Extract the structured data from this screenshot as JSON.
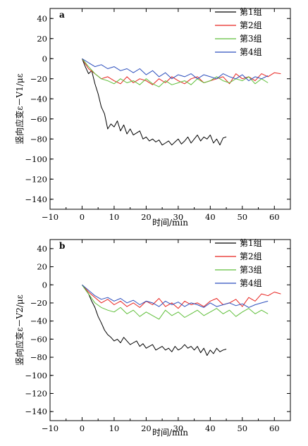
{
  "chart_data": [
    {
      "type": "line",
      "panel_label": "a",
      "xlabel": "时间/min",
      "ylabel": "竖向应变ε－V1/με",
      "xlim": [
        -10,
        65
      ],
      "ylim": [
        -150,
        50
      ],
      "xticks": [
        -10,
        0,
        10,
        20,
        30,
        40,
        50,
        60
      ],
      "yticks": [
        40,
        20,
        0,
        -20,
        -40,
        -60,
        -80,
        -100,
        -120,
        -140
      ],
      "xtick_labels": [
        "−10",
        "0",
        "10",
        "20",
        "30",
        "40",
        "50",
        "60"
      ],
      "ytick_labels": [
        "40",
        "20",
        "0",
        "−20",
        "−40",
        "−60",
        "−80",
        "−100",
        "−120",
        "−140"
      ],
      "legend_position": "top-right",
      "series": [
        {
          "name": "第1组",
          "color": "#000000",
          "x": [
            0,
            1,
            2,
            3,
            4,
            5,
            6,
            7,
            8,
            9,
            10,
            11,
            12,
            13,
            14,
            15,
            16,
            17,
            18,
            19,
            20,
            21,
            22,
            23,
            24,
            25,
            26,
            27,
            28,
            29,
            30,
            31,
            32,
            33,
            34,
            35,
            36,
            37,
            38,
            39,
            40,
            41,
            42,
            43,
            44,
            45
          ],
          "y": [
            0,
            -8,
            -15,
            -12,
            -25,
            -35,
            -48,
            -55,
            -70,
            -65,
            -68,
            -62,
            -72,
            -66,
            -75,
            -70,
            -76,
            -74,
            -72,
            -80,
            -78,
            -82,
            -80,
            -83,
            -81,
            -86,
            -84,
            -82,
            -86,
            -83,
            -80,
            -85,
            -82,
            -78,
            -84,
            -80,
            -76,
            -82,
            -78,
            -80,
            -76,
            -84,
            -80,
            -86,
            -79,
            -78
          ]
        },
        {
          "name": "第2组",
          "color": "#e8231f",
          "x": [
            0,
            2,
            4,
            6,
            8,
            10,
            12,
            14,
            16,
            18,
            20,
            22,
            24,
            26,
            28,
            30,
            32,
            34,
            36,
            38,
            40,
            42,
            44,
            46,
            48,
            50,
            52,
            54,
            56,
            58,
            60,
            62
          ],
          "y": [
            0,
            -10,
            -15,
            -20,
            -18,
            -22,
            -25,
            -18,
            -24,
            -20,
            -22,
            -26,
            -20,
            -24,
            -18,
            -22,
            -25,
            -20,
            -18,
            -24,
            -22,
            -20,
            -18,
            -25,
            -15,
            -20,
            -18,
            -22,
            -15,
            -18,
            -14,
            -15
          ]
        },
        {
          "name": "第3组",
          "color": "#5fbf3a",
          "x": [
            0,
            2,
            4,
            6,
            8,
            10,
            12,
            14,
            16,
            18,
            20,
            22,
            24,
            26,
            28,
            30,
            32,
            34,
            36,
            38,
            40,
            42,
            44,
            46,
            48,
            50,
            52,
            54,
            56,
            58
          ],
          "y": [
            0,
            -8,
            -15,
            -20,
            -22,
            -25,
            -20,
            -24,
            -22,
            -26,
            -20,
            -25,
            -28,
            -22,
            -26,
            -24,
            -22,
            -26,
            -20,
            -24,
            -22,
            -18,
            -22,
            -24,
            -20,
            -22,
            -18,
            -25,
            -20,
            -24
          ]
        },
        {
          "name": "第4组",
          "color": "#2d4fbd",
          "x": [
            0,
            2,
            4,
            6,
            8,
            10,
            12,
            14,
            16,
            18,
            20,
            22,
            24,
            26,
            28,
            30,
            32,
            34,
            36,
            38,
            40,
            42,
            44,
            46,
            48,
            50,
            52,
            54,
            56,
            58
          ],
          "y": [
            0,
            -4,
            -8,
            -6,
            -10,
            -8,
            -12,
            -10,
            -14,
            -10,
            -16,
            -12,
            -18,
            -14,
            -20,
            -16,
            -18,
            -15,
            -20,
            -16,
            -18,
            -20,
            -15,
            -18,
            -20,
            -16,
            -22,
            -18,
            -20,
            -17
          ]
        }
      ]
    },
    {
      "type": "line",
      "panel_label": "b",
      "xlabel": "时间/min",
      "ylabel": "竖向应变ε－V2/με",
      "xlim": [
        -10,
        65
      ],
      "ylim": [
        -150,
        50
      ],
      "xticks": [
        -10,
        0,
        10,
        20,
        30,
        40,
        50,
        60
      ],
      "yticks": [
        40,
        20,
        0,
        -20,
        -40,
        -60,
        -80,
        -100,
        -120,
        -140
      ],
      "xtick_labels": [
        "−10",
        "0",
        "10",
        "20",
        "30",
        "40",
        "50",
        "60"
      ],
      "ytick_labels": [
        "40",
        "20",
        "0",
        "−20",
        "−40",
        "−60",
        "−80",
        "−100",
        "−120",
        "−140"
      ],
      "legend_position": "top-right",
      "series": [
        {
          "name": "第1组",
          "color": "#000000",
          "x": [
            0,
            1,
            2,
            3,
            4,
            5,
            6,
            7,
            8,
            9,
            10,
            11,
            12,
            13,
            14,
            15,
            16,
            17,
            18,
            19,
            20,
            21,
            22,
            23,
            24,
            25,
            26,
            27,
            28,
            29,
            30,
            31,
            32,
            33,
            34,
            35,
            36,
            37,
            38,
            39,
            40,
            41,
            42,
            43,
            44,
            45
          ],
          "y": [
            0,
            -5,
            -10,
            -18,
            -25,
            -35,
            -42,
            -50,
            -55,
            -58,
            -62,
            -60,
            -64,
            -58,
            -62,
            -66,
            -64,
            -62,
            -68,
            -65,
            -70,
            -68,
            -66,
            -72,
            -70,
            -68,
            -72,
            -70,
            -74,
            -68,
            -72,
            -70,
            -66,
            -70,
            -68,
            -72,
            -68,
            -75,
            -70,
            -78,
            -72,
            -76,
            -70,
            -74,
            -72,
            -71
          ]
        },
        {
          "name": "第2组",
          "color": "#e8231f",
          "x": [
            0,
            2,
            4,
            6,
            8,
            10,
            12,
            14,
            16,
            18,
            20,
            22,
            24,
            26,
            28,
            30,
            32,
            34,
            36,
            38,
            40,
            42,
            44,
            46,
            48,
            50,
            52,
            54,
            56,
            58,
            60,
            62
          ],
          "y": [
            0,
            -8,
            -14,
            -20,
            -16,
            -22,
            -18,
            -24,
            -20,
            -25,
            -18,
            -22,
            -15,
            -24,
            -20,
            -26,
            -18,
            -22,
            -20,
            -24,
            -18,
            -15,
            -22,
            -20,
            -16,
            -24,
            -14,
            -18,
            -10,
            -12,
            -8,
            -10
          ]
        },
        {
          "name": "第3组",
          "color": "#5fbf3a",
          "x": [
            0,
            2,
            4,
            6,
            8,
            10,
            12,
            14,
            16,
            18,
            20,
            22,
            24,
            26,
            28,
            30,
            32,
            34,
            36,
            38,
            40,
            42,
            44,
            46,
            48,
            50,
            52,
            54,
            56,
            58
          ],
          "y": [
            0,
            -10,
            -20,
            -25,
            -28,
            -30,
            -25,
            -32,
            -28,
            -35,
            -30,
            -34,
            -38,
            -28,
            -34,
            -30,
            -36,
            -32,
            -28,
            -34,
            -30,
            -26,
            -32,
            -28,
            -35,
            -30,
            -26,
            -32,
            -28,
            -32
          ]
        },
        {
          "name": "第4组",
          "color": "#2d4fbd",
          "x": [
            0,
            2,
            4,
            6,
            8,
            10,
            12,
            14,
            16,
            18,
            20,
            22,
            24,
            26,
            28,
            30,
            32,
            34,
            36,
            38,
            40,
            42,
            44,
            46,
            48,
            50,
            52,
            54,
            56,
            58
          ],
          "y": [
            0,
            -6,
            -12,
            -16,
            -14,
            -18,
            -15,
            -20,
            -17,
            -22,
            -18,
            -20,
            -24,
            -18,
            -22,
            -19,
            -24,
            -20,
            -22,
            -25,
            -20,
            -24,
            -22,
            -20,
            -23,
            -21,
            -25,
            -22,
            -20,
            -18
          ]
        }
      ]
    }
  ]
}
